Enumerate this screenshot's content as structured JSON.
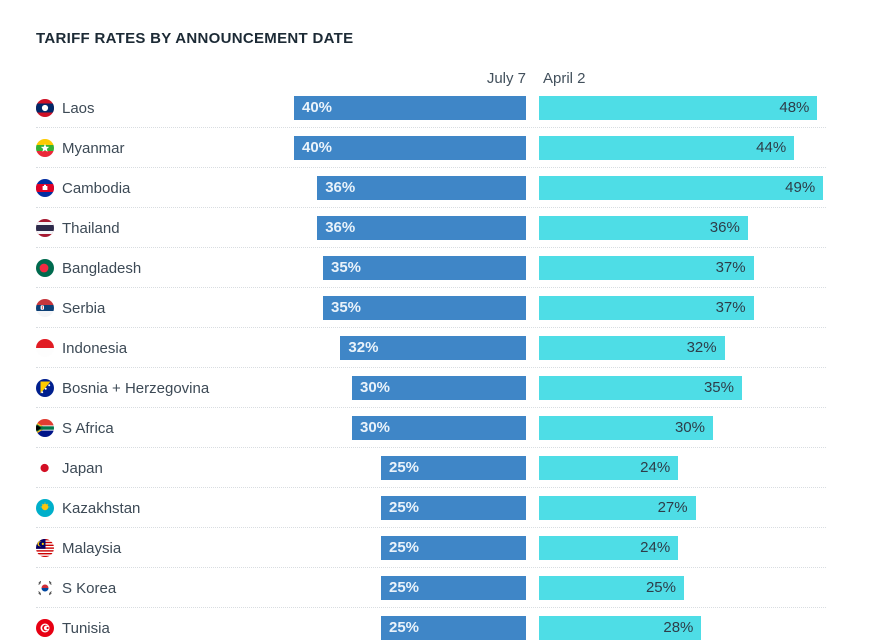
{
  "title": "TARIFF RATES BY ANNOUNCEMENT DATE",
  "columns": {
    "left": "July 7",
    "right": "April 2"
  },
  "colors": {
    "left_bar": "#3f86c7",
    "right_bar": "#4edde6",
    "left_value_color": "#e9f2fa",
    "right_value_color": "#2e3d49",
    "title_color": "#1c2a35",
    "label_color": "#3d4a56",
    "header_color": "#42505c",
    "separator_color": "#d9dde1"
  },
  "value_suffix": "%",
  "flag_icons": [
    "laos-flag-icon",
    "myanmar-flag-icon",
    "cambodia-flag-icon",
    "thailand-flag-icon",
    "bangladesh-flag-icon",
    "serbia-flag-icon",
    "indonesia-flag-icon",
    "bosnia-herzegovina-flag-icon",
    "s-africa-flag-icon",
    "japan-flag-icon",
    "kazakhstan-flag-icon",
    "malaysia-flag-icon",
    "s-korea-flag-icon",
    "tunisia-flag-icon"
  ],
  "chart_data": {
    "type": "bar",
    "orientation": "horizontal-mirrored",
    "title": "TARIFF RATES BY ANNOUNCEMENT DATE",
    "categories": [
      "Laos",
      "Myanmar",
      "Cambodia",
      "Thailand",
      "Bangladesh",
      "Serbia",
      "Indonesia",
      "Bosnia + Herzegovina",
      "S Africa",
      "Japan",
      "Kazakhstan",
      "Malaysia",
      "S Korea",
      "Tunisia"
    ],
    "series": [
      {
        "name": "July 7",
        "values": [
          40,
          40,
          36,
          36,
          35,
          35,
          32,
          30,
          30,
          25,
          25,
          25,
          25,
          25
        ]
      },
      {
        "name": "April 2",
        "values": [
          48,
          44,
          49,
          36,
          37,
          37,
          32,
          35,
          30,
          24,
          27,
          24,
          25,
          28
        ]
      }
    ],
    "value_labels": {
      "July 7": [
        "40%",
        "40%",
        "36%",
        "36%",
        "35%",
        "35%",
        "32%",
        "30%",
        "30%",
        "25%",
        "25%",
        "25%",
        "25%",
        "25%"
      ],
      "April 2": [
        "48%",
        "44%",
        "49%",
        "36%",
        "37%",
        "37%",
        "32%",
        "35%",
        "30%",
        "24%",
        "27%",
        "24%",
        "25%",
        "28%"
      ]
    },
    "xlabel": "",
    "ylabel": "",
    "value_range": [
      0,
      50
    ],
    "grid": "dotted-row-separators",
    "legend_position": "top-as-column-headers"
  }
}
